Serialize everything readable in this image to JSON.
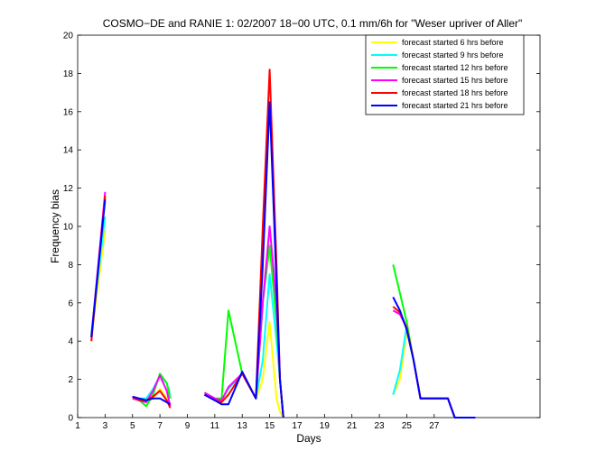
{
  "chart_data": {
    "type": "line",
    "title": "COSMO−DE and RANIE 1: 02/2007 18−00 UTC, 0.1 mm/6h for \"Weser upriver of Aller\"",
    "xlabel": "Days",
    "ylabel": "Frequency bias",
    "xlim": [
      1,
      28
    ],
    "ylim": [
      0,
      20
    ],
    "xticks": [
      1,
      3,
      5,
      7,
      9,
      11,
      13,
      15,
      17,
      19,
      21,
      23,
      25,
      27
    ],
    "yticks": [
      0,
      2,
      4,
      6,
      8,
      10,
      12,
      14,
      16,
      18,
      20
    ],
    "grid": false,
    "legend_position": "top-right",
    "series": [
      {
        "name": "forecast started 6 hrs before",
        "color": "#ffff00",
        "segments": [
          [
            [
              2,
              4.2
            ],
            [
              3,
              9.8
            ]
          ],
          [
            [
              5,
              1.0
            ],
            [
              5.5,
              0.9
            ],
            [
              6,
              0.8
            ],
            [
              6.5,
              1.0
            ],
            [
              7,
              1.5
            ],
            [
              7.5,
              1.0
            ],
            [
              7.75,
              0.7
            ]
          ],
          [
            [
              10.25,
              1.2
            ],
            [
              11,
              0.9
            ],
            [
              11.5,
              0.8
            ],
            [
              12,
              1.5
            ],
            [
              13,
              2.3
            ],
            [
              14,
              1.0
            ],
            [
              14.5,
              2.0
            ],
            [
              15,
              5.0
            ],
            [
              15.5,
              1.0
            ],
            [
              15.75,
              0.3
            ],
            [
              16,
              0
            ]
          ],
          [
            [
              24,
              1.2
            ],
            [
              24.5,
              2.0
            ],
            [
              25,
              4.5
            ],
            [
              25.5,
              3.0
            ],
            [
              26,
              1.0
            ],
            [
              27,
              1.0
            ],
            [
              28,
              1.0
            ],
            [
              28.5,
              0
            ],
            [
              30,
              0
            ]
          ]
        ]
      },
      {
        "name": "forecast started 9 hrs before",
        "color": "#00ffff",
        "segments": [
          [
            [
              2,
              4.4
            ],
            [
              3,
              10.5
            ]
          ],
          [
            [
              5,
              1.0
            ],
            [
              5.5,
              1.0
            ],
            [
              6,
              1.0
            ],
            [
              6.5,
              1.5
            ],
            [
              7,
              2.2
            ],
            [
              7.5,
              1.8
            ],
            [
              7.75,
              1.2
            ]
          ],
          [
            [
              10.25,
              1.2
            ],
            [
              11,
              0.9
            ],
            [
              11.5,
              0.9
            ],
            [
              12,
              1.5
            ],
            [
              13,
              2.3
            ],
            [
              14,
              1.0
            ],
            [
              14.5,
              3.0
            ],
            [
              15,
              7.5
            ],
            [
              15.5,
              4.0
            ],
            [
              15.75,
              2.0
            ],
            [
              16,
              0
            ]
          ],
          [
            [
              24,
              1.2
            ],
            [
              24.5,
              2.5
            ],
            [
              25,
              4.8
            ],
            [
              25.5,
              3.0
            ],
            [
              26,
              1.0
            ],
            [
              27,
              1.0
            ],
            [
              28,
              1.0
            ],
            [
              28.5,
              0
            ],
            [
              30,
              0
            ]
          ]
        ]
      },
      {
        "name": "forecast started 12 hrs before",
        "color": "#00ff00",
        "segments": [
          [
            [
              2,
              4.3
            ],
            [
              3,
              11.5
            ]
          ],
          [
            [
              5,
              1.0
            ],
            [
              5.5,
              0.9
            ],
            [
              6,
              0.6
            ],
            [
              6.5,
              1.2
            ],
            [
              7,
              2.3
            ],
            [
              7.5,
              1.8
            ],
            [
              7.75,
              1.0
            ]
          ],
          [
            [
              10.25,
              1.3
            ],
            [
              11,
              1.0
            ],
            [
              11.5,
              1.0
            ],
            [
              12,
              5.6
            ],
            [
              13,
              2.3
            ],
            [
              14,
              1.0
            ],
            [
              14.5,
              6.0
            ],
            [
              15,
              9.0
            ],
            [
              15.5,
              5.0
            ],
            [
              15.75,
              2.0
            ],
            [
              16,
              0
            ]
          ],
          [
            [
              24,
              8.0
            ],
            [
              24.5,
              6.5
            ],
            [
              25,
              5.0
            ],
            [
              25.5,
              3.0
            ],
            [
              26,
              1.0
            ],
            [
              27,
              1.0
            ],
            [
              28,
              1.0
            ],
            [
              28.5,
              0
            ],
            [
              30,
              0
            ]
          ]
        ]
      },
      {
        "name": "forecast started 15 hrs before",
        "color": "#ff00ff",
        "segments": [
          [
            [
              2,
              4.2
            ],
            [
              3,
              11.8
            ]
          ],
          [
            [
              5,
              1.0
            ],
            [
              5.5,
              0.9
            ],
            [
              6,
              0.8
            ],
            [
              6.5,
              1.4
            ],
            [
              7,
              2.2
            ],
            [
              7.5,
              1.4
            ],
            [
              7.75,
              0.6
            ]
          ],
          [
            [
              10.25,
              1.3
            ],
            [
              11,
              1.0
            ],
            [
              11.5,
              0.9
            ],
            [
              12,
              1.6
            ],
            [
              13,
              2.3
            ],
            [
              14,
              1.0
            ],
            [
              14.5,
              6.0
            ],
            [
              15,
              10.0
            ],
            [
              15.5,
              6.0
            ],
            [
              15.75,
              2.0
            ],
            [
              16,
              0
            ]
          ],
          [
            [
              24,
              5.6
            ],
            [
              24.5,
              5.4
            ],
            [
              25,
              4.7
            ],
            [
              25.5,
              3.0
            ],
            [
              26,
              1.0
            ],
            [
              27,
              1.0
            ],
            [
              28,
              1.0
            ],
            [
              28.5,
              0
            ],
            [
              30,
              0
            ]
          ]
        ]
      },
      {
        "name": "forecast started 18 hrs before",
        "color": "#ff0000",
        "segments": [
          [
            [
              2,
              4.0
            ],
            [
              3,
              11.6
            ]
          ],
          [
            [
              5,
              1.1
            ],
            [
              5.5,
              0.9
            ],
            [
              6,
              0.9
            ],
            [
              6.5,
              1.1
            ],
            [
              7,
              1.4
            ],
            [
              7.5,
              0.9
            ],
            [
              7.75,
              0.5
            ]
          ],
          [
            [
              10.25,
              1.2
            ],
            [
              11,
              0.9
            ],
            [
              11.5,
              0.8
            ],
            [
              12,
              1.2
            ],
            [
              13,
              2.3
            ],
            [
              14,
              1.0
            ],
            [
              14.5,
              10.0
            ],
            [
              15,
              18.2
            ],
            [
              15.5,
              8.0
            ],
            [
              15.75,
              2.0
            ],
            [
              16,
              0
            ]
          ],
          [
            [
              24,
              5.8
            ],
            [
              24.5,
              5.5
            ],
            [
              25,
              4.7
            ],
            [
              25.5,
              3.0
            ],
            [
              26,
              1.0
            ],
            [
              27,
              1.0
            ],
            [
              28,
              1.0
            ],
            [
              28.5,
              0
            ],
            [
              30,
              0
            ]
          ]
        ]
      },
      {
        "name": "forecast started 21 hrs before",
        "color": "#0000ff",
        "segments": [
          [
            [
              2,
              4.2
            ],
            [
              3,
              11.4
            ]
          ],
          [
            [
              5,
              1.1
            ],
            [
              5.5,
              1.0
            ],
            [
              6,
              0.9
            ],
            [
              6.5,
              1.0
            ],
            [
              7,
              1.0
            ],
            [
              7.5,
              0.8
            ],
            [
              7.75,
              0.7
            ]
          ],
          [
            [
              10.25,
              1.2
            ],
            [
              11,
              0.9
            ],
            [
              11.5,
              0.7
            ],
            [
              12,
              0.7
            ],
            [
              13,
              2.4
            ],
            [
              14,
              1.0
            ],
            [
              14.5,
              8.0
            ],
            [
              15,
              16.5
            ],
            [
              15.5,
              7.0
            ],
            [
              15.75,
              2.0
            ],
            [
              16,
              0
            ]
          ],
          [
            [
              24,
              6.3
            ],
            [
              24.5,
              5.6
            ],
            [
              25,
              4.6
            ],
            [
              25.5,
              3.0
            ],
            [
              26,
              1.0
            ],
            [
              27,
              1.0
            ],
            [
              28,
              1.0
            ],
            [
              28.5,
              0
            ],
            [
              30,
              0
            ]
          ]
        ]
      }
    ]
  }
}
